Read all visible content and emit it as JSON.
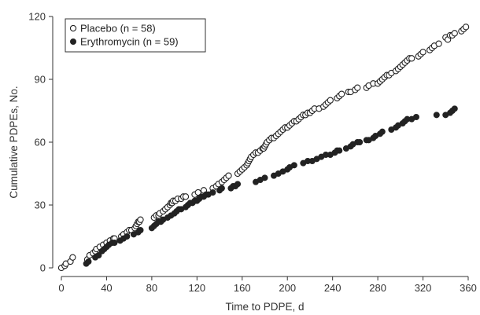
{
  "chart_data": {
    "type": "scatter",
    "xlabel": "Time to PDPE, d",
    "ylabel": "Cumulative PDPEs, No.",
    "xlim": [
      0,
      360
    ],
    "ylim": [
      0,
      120
    ],
    "x_ticks": [
      0,
      40,
      80,
      120,
      160,
      200,
      240,
      280,
      320,
      360
    ],
    "y_ticks": [
      0,
      30,
      60,
      90,
      120
    ],
    "grid": false,
    "legend_position": "top-left",
    "series": [
      {
        "name": "Placebo (n = 58)",
        "marker": "open-circle",
        "color": "#222222",
        "x": [
          0,
          3,
          4,
          8,
          10,
          23,
          25,
          28,
          30,
          31,
          34,
          37,
          40,
          43,
          46,
          47,
          53,
          55,
          58,
          60,
          62,
          65,
          66,
          67,
          68,
          69,
          70,
          82,
          84,
          86,
          87,
          90,
          92,
          94,
          96,
          97,
          98,
          99,
          101,
          103,
          106,
          108,
          110,
          118,
          121,
          126,
          134,
          137,
          139,
          142,
          144,
          146,
          148,
          156,
          158,
          160,
          162,
          164,
          165,
          166,
          167,
          168,
          170,
          172,
          174,
          176,
          178,
          179,
          180,
          181,
          182,
          184,
          186,
          188,
          190,
          192,
          194,
          196,
          198,
          200,
          202,
          204,
          206,
          208,
          210,
          212,
          214,
          216,
          218,
          220,
          222,
          224,
          228,
          232,
          234,
          236,
          238,
          244,
          246,
          248,
          254,
          256,
          260,
          262,
          270,
          272,
          276,
          280,
          282,
          284,
          286,
          288,
          290,
          292,
          296,
          298,
          300,
          302,
          304,
          306,
          308,
          310,
          316,
          318,
          320,
          326,
          328,
          330,
          334,
          340,
          342,
          344,
          346,
          348,
          354,
          356,
          358
        ],
        "y": [
          0,
          1,
          2,
          3,
          5,
          4,
          6,
          7,
          8,
          9,
          10,
          11,
          12,
          13,
          14,
          14,
          15,
          16,
          17,
          18,
          18,
          19,
          20,
          21,
          22,
          22,
          23,
          24,
          25,
          25,
          26,
          27,
          28,
          29,
          30,
          31,
          31,
          32,
          32,
          33,
          33,
          34,
          34,
          35,
          36,
          37,
          38,
          39,
          40,
          41,
          42,
          43,
          44,
          45,
          46,
          47,
          48,
          49,
          50,
          51,
          52,
          53,
          54,
          55,
          55,
          56,
          57,
          57,
          58,
          59,
          60,
          61,
          62,
          62,
          63,
          64,
          65,
          66,
          67,
          67,
          68,
          69,
          70,
          70,
          71,
          72,
          73,
          73,
          74,
          74,
          75,
          76,
          76,
          77,
          78,
          79,
          80,
          81,
          82,
          83,
          84,
          84,
          85,
          86,
          86,
          87,
          88,
          88,
          89,
          90,
          91,
          92,
          92,
          93,
          94,
          95,
          96,
          97,
          98,
          99,
          100,
          100,
          101,
          102,
          103,
          104,
          105,
          106,
          107,
          110,
          109,
          111,
          111,
          112,
          113,
          114,
          115
        ]
      },
      {
        "name": "Erythromycin (n = 59)",
        "marker": "filled-circle",
        "color": "#222222",
        "x": [
          22,
          24,
          30,
          33,
          36,
          38,
          40,
          42,
          45,
          47,
          52,
          55,
          58,
          64,
          68,
          70,
          80,
          82,
          84,
          86,
          88,
          90,
          94,
          97,
          100,
          102,
          104,
          106,
          110,
          112,
          114,
          116,
          118,
          120,
          122,
          124,
          126,
          128,
          130,
          134,
          140,
          142,
          150,
          152,
          154,
          156,
          172,
          176,
          180,
          188,
          192,
          196,
          200,
          202,
          206,
          214,
          218,
          222,
          226,
          230,
          234,
          238,
          242,
          244,
          246,
          252,
          256,
          258,
          262,
          264,
          270,
          272,
          276,
          278,
          282,
          284,
          292,
          296,
          298,
          302,
          304,
          306,
          310,
          314,
          332,
          340,
          344,
          346,
          348
        ],
        "y": [
          2,
          3,
          5,
          6,
          8,
          9,
          10,
          11,
          12,
          12,
          13,
          14,
          15,
          16,
          17,
          18,
          19,
          20,
          21,
          22,
          22,
          23,
          24,
          25,
          26,
          27,
          28,
          28,
          29,
          30,
          31,
          31,
          32,
          32,
          33,
          34,
          34,
          35,
          35,
          36,
          37,
          38,
          38,
          39,
          39,
          40,
          41,
          42,
          43,
          44,
          45,
          46,
          47,
          48,
          49,
          50,
          51,
          51,
          52,
          53,
          54,
          54,
          55,
          56,
          56,
          57,
          58,
          59,
          60,
          60,
          61,
          61,
          62,
          63,
          64,
          65,
          66,
          67,
          68,
          69,
          70,
          71,
          71,
          72,
          73,
          73,
          74,
          75,
          76
        ]
      }
    ]
  }
}
